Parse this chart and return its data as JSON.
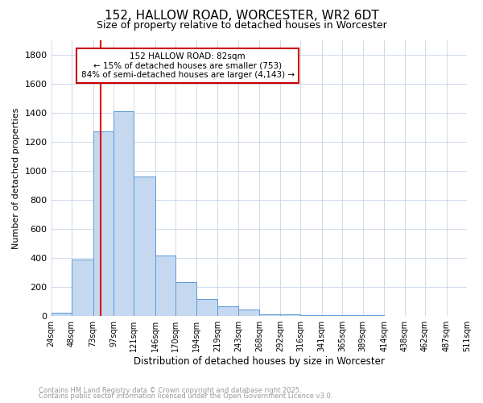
{
  "title_line1": "152, HALLOW ROAD, WORCESTER, WR2 6DT",
  "title_line2": "Size of property relative to detached houses in Worcester",
  "xlabel": "Distribution of detached houses by size in Worcester",
  "ylabel": "Number of detached properties",
  "bar_edges": [
    24,
    48,
    73,
    97,
    121,
    146,
    170,
    194,
    219,
    243,
    268,
    292,
    316,
    341,
    365,
    389,
    414,
    438,
    462,
    487,
    511
  ],
  "bar_heights": [
    25,
    390,
    1270,
    1410,
    960,
    420,
    235,
    120,
    70,
    45,
    15,
    10,
    5,
    5,
    5,
    5,
    2,
    2,
    2,
    2
  ],
  "bar_color": "#c5d8f0",
  "bar_edgecolor": "#5b9bd5",
  "grid_color": "#c8d4e8",
  "red_line_x": 82,
  "red_line_color": "#dd0000",
  "annotation_text": "152 HALLOW ROAD: 82sqm\n← 15% of detached houses are smaller (753)\n84% of semi-detached houses are larger (4,143) →",
  "annotation_box_facecolor": "#ffffff",
  "annotation_box_edgecolor": "#cc0000",
  "ylim": [
    0,
    1900
  ],
  "yticks": [
    0,
    200,
    400,
    600,
    800,
    1000,
    1200,
    1400,
    1600,
    1800
  ],
  "footnote_line1": "Contains HM Land Registry data © Crown copyright and database right 2025.",
  "footnote_line2": "Contains public sector information licensed under the Open Government Licence v3.0.",
  "footnote_color": "#999999",
  "background_color": "#ffffff",
  "plot_bg_color": "#ffffff"
}
